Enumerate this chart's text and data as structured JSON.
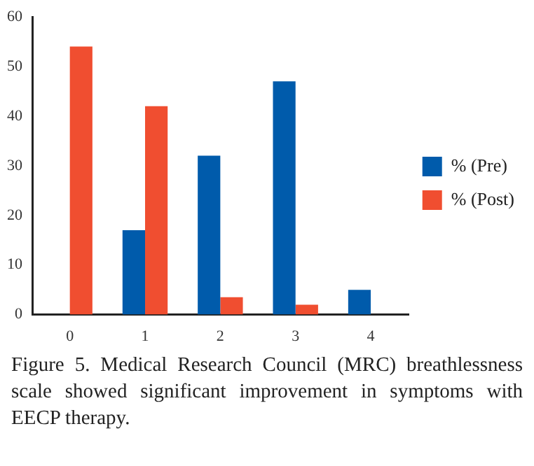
{
  "chart_data": {
    "type": "bar",
    "categories": [
      "0",
      "1",
      "2",
      "3",
      "4"
    ],
    "series": [
      {
        "name": "% (Pre)",
        "color": "#005bab",
        "values": [
          0,
          17,
          32,
          47,
          5
        ]
      },
      {
        "name": "% (Post)",
        "color": "#f04e30",
        "values": [
          54,
          42,
          3.5,
          2,
          0
        ]
      }
    ],
    "ylim": [
      0,
      60
    ],
    "yticks": [
      0,
      10,
      20,
      30,
      40,
      50,
      60
    ],
    "grid": false,
    "legend": "right",
    "annotations": [
      "Figure 5. Medical Research Council (MRC) breathlessness scale showed significant improvement in symptoms with EECP therapy."
    ]
  }
}
